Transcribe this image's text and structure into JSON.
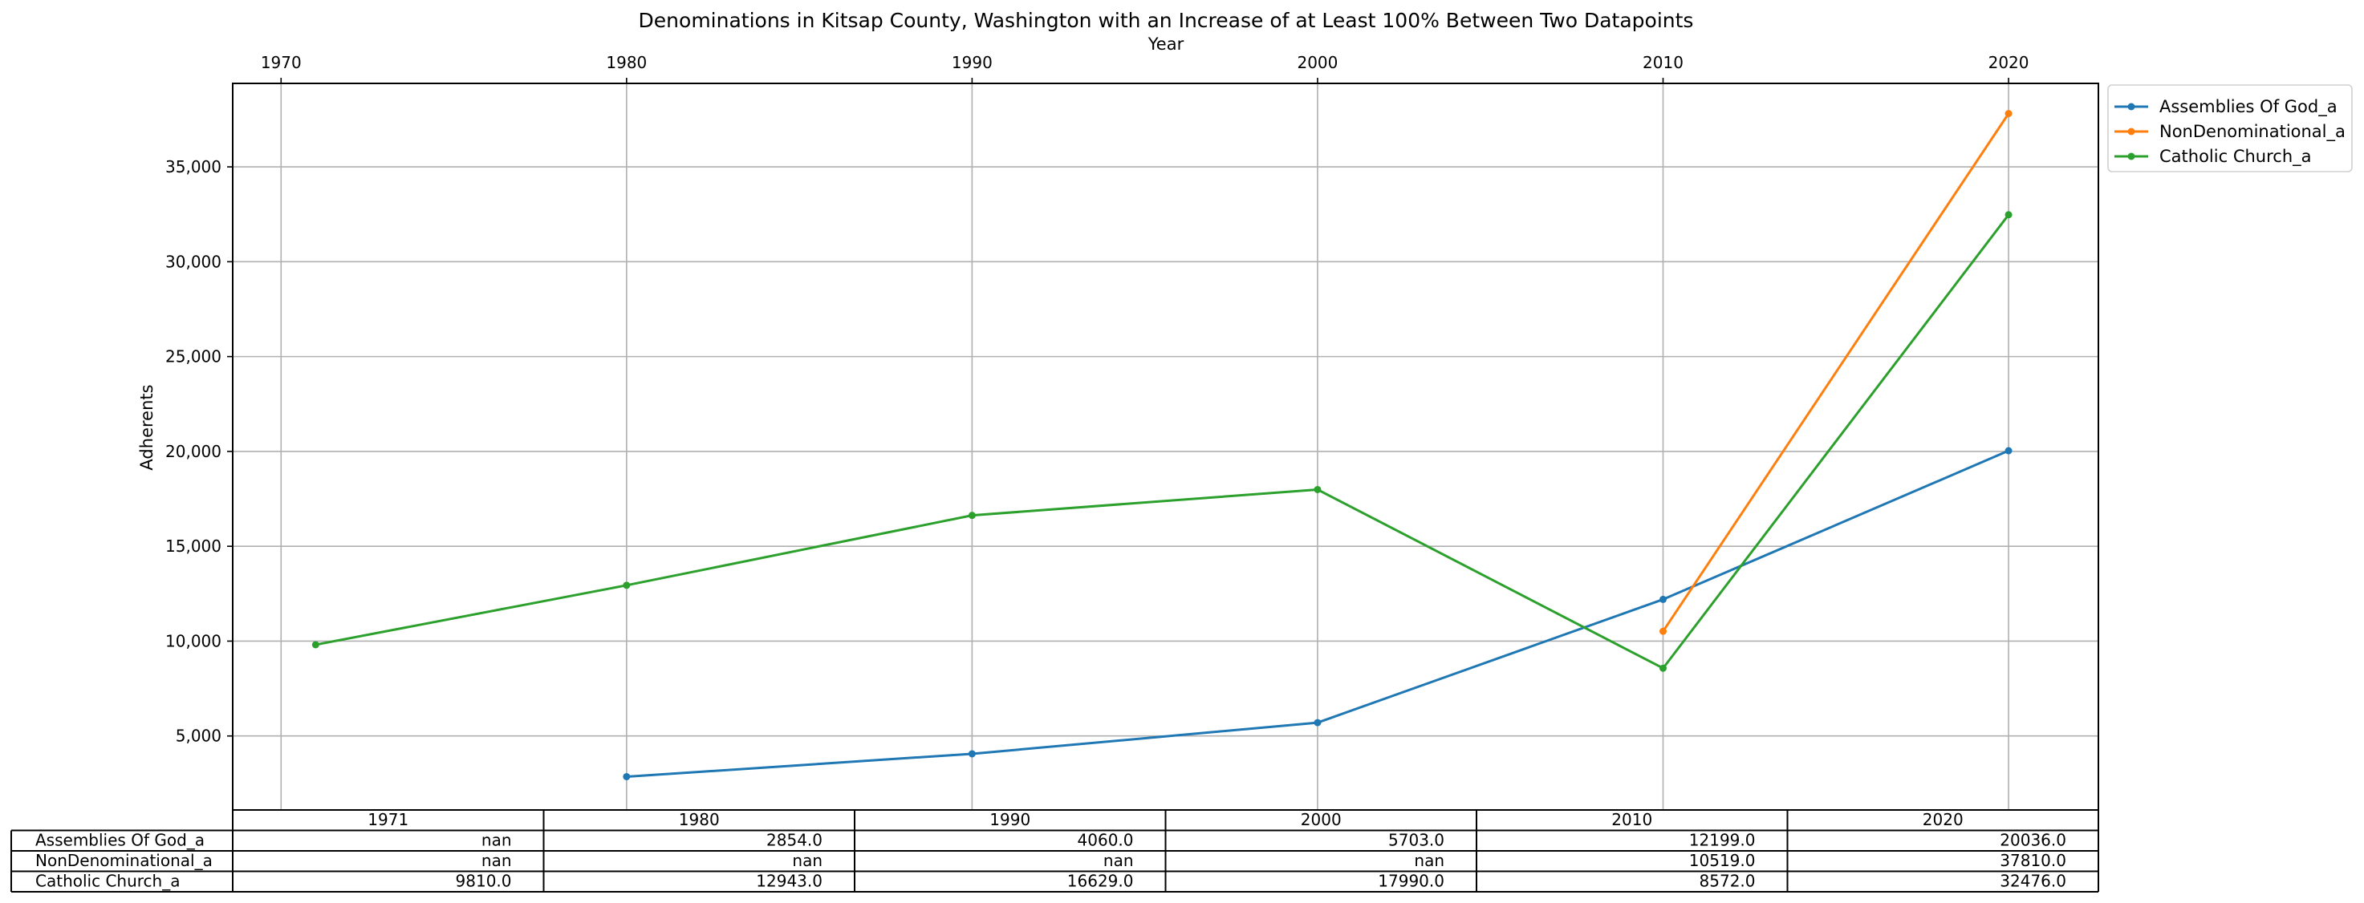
{
  "chart_data": {
    "type": "line",
    "title": "Denominations in Kitsap County, Washington with an Increase of at Least 100% Between Two Datapoints",
    "xlabel": "Year",
    "ylabel": "Adherents",
    "x_ticks": [
      1970,
      1980,
      1990,
      2000,
      2010,
      2020
    ],
    "x_tick_labels": [
      "1970",
      "1980",
      "1990",
      "2000",
      "2010",
      "2020"
    ],
    "y_ticks": [
      5000,
      10000,
      15000,
      20000,
      25000,
      30000,
      35000
    ],
    "y_tick_labels": [
      "5,000",
      "10,000",
      "15,000",
      "20,000",
      "25,000",
      "30,000",
      "35,000"
    ],
    "xlim": [
      1968.6,
      2022.6
    ],
    "ylim": [
      1099,
      39400
    ],
    "grid": true,
    "legend_position": "outside-top-right",
    "x": [
      1971,
      1980,
      1990,
      2000,
      2010,
      2020
    ],
    "series": [
      {
        "name": "Assemblies Of God_a",
        "color": "#1f77b4",
        "values": [
          null,
          2854,
          4060,
          5703,
          12199,
          20036
        ]
      },
      {
        "name": "NonDenominational_a",
        "color": "#ff7f0e",
        "values": [
          null,
          null,
          null,
          null,
          10519,
          37810
        ]
      },
      {
        "name": "Catholic Church_a",
        "color": "#2ca02c",
        "values": [
          9810,
          12943,
          16629,
          17990,
          8572,
          32476
        ]
      }
    ],
    "table": {
      "columns": [
        "1971",
        "1980",
        "1990",
        "2000",
        "2010",
        "2020"
      ],
      "rows": [
        {
          "label": "Assemblies Of God_a",
          "cells": [
            "nan",
            "2854.0",
            "4060.0",
            "5703.0",
            "12199.0",
            "20036.0"
          ]
        },
        {
          "label": "NonDenominational_a",
          "cells": [
            "nan",
            "nan",
            "nan",
            "nan",
            "10519.0",
            "37810.0"
          ]
        },
        {
          "label": "Catholic Church_a",
          "cells": [
            "9810.0",
            "12943.0",
            "16629.0",
            "17990.0",
            "8572.0",
            "32476.0"
          ]
        }
      ]
    }
  }
}
